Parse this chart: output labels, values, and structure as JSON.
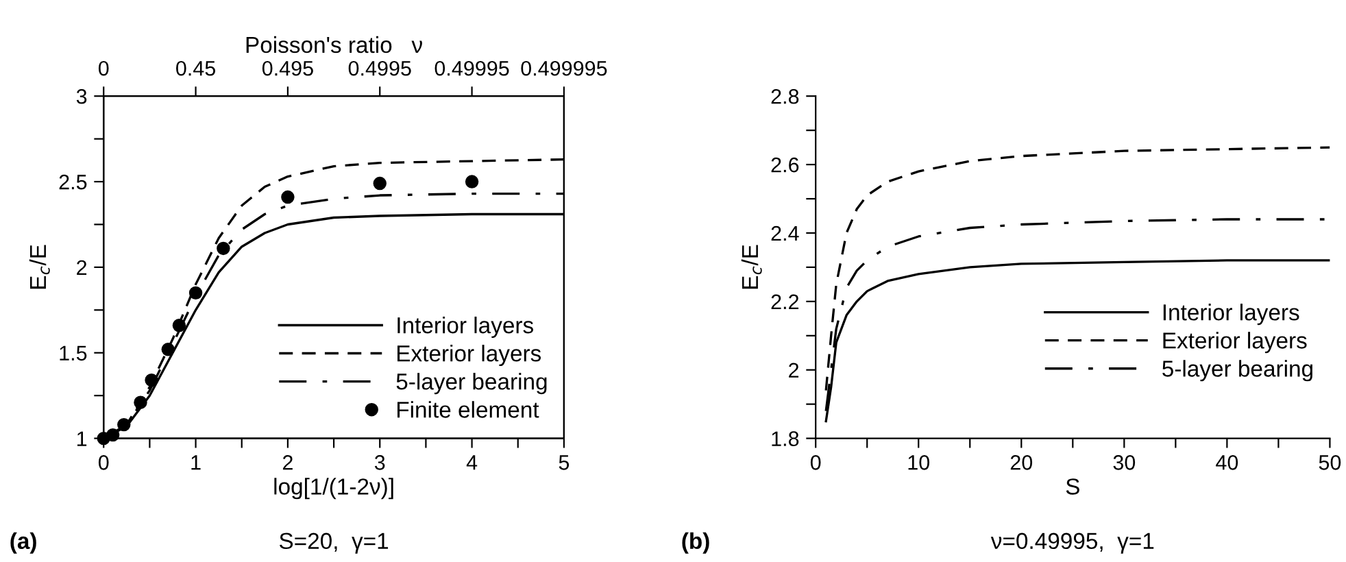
{
  "chart_data": [
    {
      "type": "line",
      "xlabel": "log[1/(1-2ν)]",
      "ylabel": "E$_{c}$/E",
      "x2label": "Poisson's ratio   ν",
      "xlim": [
        0,
        5
      ],
      "ylim": [
        1,
        3
      ],
      "xticks": [
        0,
        {
          "value": 0.5,
          "label": null
        },
        1,
        {
          "value": 1.5,
          "label": null
        },
        2,
        {
          "value": 2.5,
          "label": null
        },
        3,
        {
          "value": 3.5,
          "label": null
        },
        4,
        {
          "value": 4.5,
          "label": null
        },
        5
      ],
      "yticks": [
        1,
        {
          "value": 1.25,
          "label": null
        },
        1.5,
        {
          "value": 1.75,
          "label": null
        },
        2,
        {
          "value": 2.25,
          "label": null
        },
        2.5,
        {
          "value": 2.75,
          "label": null
        },
        3
      ],
      "legend": "bottom right",
      "grid": false,
      "series": [
        {
          "name": "Interior layers",
          "color": "#000000",
          "line_style": "solid",
          "x": [
            0,
            0.25,
            0.5,
            0.75,
            1,
            1.25,
            1.5,
            1.75,
            2,
            2.5,
            3,
            4,
            5
          ],
          "values": [
            1,
            1.07,
            1.25,
            1.5,
            1.75,
            1.97,
            2.12,
            2.2,
            2.25,
            2.29,
            2.3,
            2.31,
            2.31
          ]
        },
        {
          "name": "Exterior layers",
          "color": "#000000",
          "line_style": "dashed",
          "x": [
            0,
            0.25,
            0.5,
            0.75,
            1,
            1.25,
            1.5,
            1.75,
            2,
            2.5,
            3,
            4,
            5
          ],
          "values": [
            1,
            1.08,
            1.3,
            1.58,
            1.9,
            2.17,
            2.36,
            2.47,
            2.53,
            2.59,
            2.61,
            2.62,
            2.63
          ]
        },
        {
          "name": "5-layer bearing",
          "color": "#000000",
          "line_style": "dashdot",
          "x": [
            0,
            0.25,
            0.5,
            0.75,
            1,
            1.25,
            1.5,
            1.75,
            2,
            2.5,
            3,
            4,
            5
          ],
          "values": [
            1,
            1.08,
            1.28,
            1.55,
            1.83,
            2.07,
            2.22,
            2.31,
            2.36,
            2.4,
            2.42,
            2.43,
            2.43
          ]
        },
        {
          "name": "Finite element",
          "type": "scatter",
          "marker": "circle",
          "color": "#000000",
          "x": [
            0,
            0.1,
            0.22,
            0.4,
            0.52,
            0.7,
            0.82,
            1,
            1.3,
            2,
            3,
            4
          ],
          "values": [
            1,
            1.02,
            1.08,
            1.21,
            1.34,
            1.52,
            1.66,
            1.85,
            2.11,
            2.41,
            2.49,
            2.5
          ]
        }
      ],
      "annotations": [
        "(a)",
        "S=20,  γ=1",
        "0",
        "0.45",
        "0.495",
        "0.4995",
        "0.49995",
        "0.499995"
      ]
    },
    {
      "type": "line",
      "xlabel": "S",
      "ylabel": "E$_{c}$/E",
      "xlim": [
        0,
        50
      ],
      "ylim": [
        1.8,
        2.8
      ],
      "xticks": [
        0,
        {
          "value": 5,
          "label": null
        },
        10,
        {
          "value": 15,
          "label": null
        },
        20,
        {
          "value": 25,
          "label": null
        },
        30,
        {
          "value": 35,
          "label": null
        },
        40,
        {
          "value": 45,
          "label": null
        },
        50
      ],
      "yticks": [
        1.8,
        {
          "value": 1.9,
          "label": null
        },
        2,
        {
          "value": 2.1,
          "label": null
        },
        2.2,
        {
          "value": 2.3,
          "label": null
        },
        2.4,
        {
          "value": 2.5,
          "label": null
        },
        2.6,
        {
          "value": 2.7,
          "label": null
        },
        2.8
      ],
      "legend": "bottom right",
      "grid": false,
      "series": [
        {
          "name": "Interior layers",
          "color": "#000000",
          "line_style": "solid",
          "x": [
            1,
            1.5,
            2,
            3,
            4,
            5,
            7,
            10,
            15,
            20,
            30,
            40,
            50
          ],
          "values": [
            1.85,
            1.95,
            2.08,
            2.16,
            2.2,
            2.23,
            2.26,
            2.28,
            2.3,
            2.31,
            2.315,
            2.32,
            2.32
          ]
        },
        {
          "name": "Exterior layers",
          "color": "#000000",
          "line_style": "dashed",
          "x": [
            1,
            1.5,
            2,
            3,
            4,
            5,
            7,
            10,
            15,
            20,
            30,
            40,
            50
          ],
          "values": [
            1.94,
            2.1,
            2.25,
            2.4,
            2.47,
            2.51,
            2.55,
            2.58,
            2.61,
            2.625,
            2.64,
            2.645,
            2.65
          ]
        },
        {
          "name": "5-layer bearing",
          "color": "#000000",
          "line_style": "dashdot",
          "x": [
            1,
            1.5,
            2,
            3,
            4,
            5,
            7,
            10,
            15,
            20,
            30,
            40,
            50
          ],
          "values": [
            1.88,
            2.0,
            2.12,
            2.24,
            2.29,
            2.32,
            2.36,
            2.39,
            2.415,
            2.425,
            2.435,
            2.44,
            2.44
          ]
        }
      ],
      "annotations": [
        "(b)",
        "ν=0.49995,  γ=1"
      ]
    }
  ]
}
